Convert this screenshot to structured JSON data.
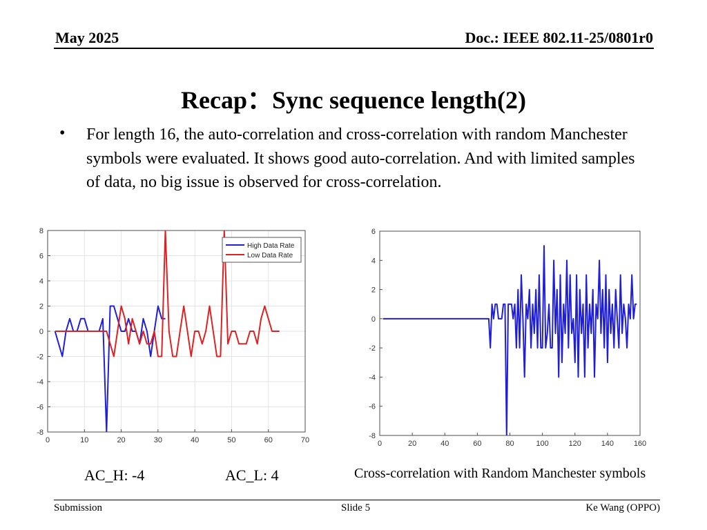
{
  "header": {
    "date": "May 2025",
    "doc": "Doc.: IEEE 802.11-25/0801r0"
  },
  "slide": {
    "title": "Recap：Sync sequence length(2)",
    "bullet": "For length 16, the auto-correlation and cross-correlation with random Manchester symbols were evaluated. It shows good auto-correlation. And with limited samples of data, no big issue is observed for cross-correlation."
  },
  "captions": {
    "ac_h": "AC_H: -4",
    "ac_l": "AC_L: 4",
    "cross": "Cross-correlation with Random Manchester symbols"
  },
  "footer": {
    "left": "Submission",
    "center": "Slide 5",
    "right": "Ke Wang (OPPO)"
  },
  "chart_data": [
    {
      "type": "line",
      "title": "",
      "xlabel": "",
      "ylabel": "",
      "xlim": [
        0,
        70
      ],
      "ylim": [
        -8,
        8
      ],
      "xticks": [
        0,
        10,
        20,
        30,
        40,
        50,
        60,
        70
      ],
      "yticks": [
        -8,
        -6,
        -4,
        -2,
        0,
        2,
        4,
        6,
        8
      ],
      "grid": true,
      "legend_position": "top-right",
      "series": [
        {
          "name": "High Data Rate",
          "color": "#1f1fd8",
          "x": [
            2,
            3,
            4,
            5,
            6,
            7,
            8,
            9,
            10,
            11,
            12,
            13,
            14,
            15,
            16,
            17,
            18,
            19,
            20,
            21,
            22,
            23,
            24,
            25,
            26,
            27,
            28,
            29,
            30,
            31,
            32
          ],
          "y": [
            0,
            -1,
            -2,
            0,
            1,
            0,
            0,
            1,
            1,
            0,
            0,
            0,
            0,
            1,
            -8,
            2,
            2,
            1,
            0,
            0,
            1,
            0,
            0,
            -1,
            1,
            0,
            -2,
            0,
            2,
            1,
            1
          ]
        },
        {
          "name": "Low Data Rate",
          "color": "#e02020",
          "x": [
            2,
            3,
            4,
            5,
            6,
            7,
            8,
            9,
            10,
            11,
            12,
            13,
            14,
            15,
            16,
            17,
            18,
            19,
            20,
            21,
            22,
            23,
            24,
            25,
            26,
            27,
            28,
            29,
            30,
            31,
            32,
            33,
            34,
            35,
            36,
            37,
            38,
            39,
            40,
            41,
            42,
            43,
            44,
            45,
            46,
            47,
            48,
            49,
            50,
            51,
            52,
            53,
            54,
            55,
            56,
            57,
            58,
            59,
            60,
            61,
            62,
            63
          ],
          "y": [
            0,
            0,
            0,
            0,
            0,
            0,
            0,
            0,
            0,
            0,
            0,
            0,
            0,
            0,
            0,
            -1,
            -2,
            0,
            2,
            1,
            -1,
            1,
            0,
            -1,
            0,
            -1,
            -1,
            0,
            -2,
            -2,
            8,
            0,
            -2,
            -2,
            0,
            2,
            0,
            -2,
            0,
            0,
            -1,
            0,
            2,
            0,
            -2,
            -2,
            8,
            -1,
            0,
            0,
            -1,
            -1,
            -1,
            0,
            0,
            -1,
            1,
            2,
            1,
            0,
            0,
            0
          ]
        }
      ]
    },
    {
      "type": "line",
      "title": "",
      "xlabel": "",
      "ylabel": "",
      "xlim": [
        0,
        160
      ],
      "ylim": [
        -8,
        6
      ],
      "xticks": [
        0,
        20,
        40,
        60,
        80,
        100,
        120,
        140,
        160
      ],
      "yticks": [
        -8,
        -6,
        -4,
        -2,
        0,
        2,
        4,
        6
      ],
      "grid": false,
      "series": [
        {
          "color": "#1f1fd8",
          "x": [
            2,
            66,
            67,
            68,
            69,
            70,
            71,
            72,
            73,
            74,
            75,
            76,
            77,
            78,
            79,
            80,
            81,
            82,
            83,
            84,
            85,
            86,
            87,
            88,
            89,
            90,
            91,
            92,
            93,
            94,
            95,
            96,
            97,
            98,
            99,
            100,
            101,
            102,
            103,
            104,
            105,
            106,
            107,
            108,
            109,
            110,
            111,
            112,
            113,
            114,
            115,
            116,
            117,
            118,
            119,
            120,
            121,
            122,
            123,
            124,
            125,
            126,
            127,
            128,
            129,
            130,
            131,
            132,
            133,
            134,
            135,
            136,
            137,
            138,
            139,
            140,
            141,
            142,
            143,
            144,
            145,
            146,
            147,
            148,
            149,
            150,
            151,
            152,
            153,
            154,
            155,
            156,
            157,
            158
          ],
          "y": [
            0,
            0,
            0,
            -2,
            1,
            0,
            1,
            1,
            0,
            0,
            0,
            1,
            1,
            -8,
            1,
            1,
            1,
            0,
            1,
            -2,
            2,
            -2,
            3,
            0,
            -4,
            1,
            0,
            2,
            -2,
            1,
            -1,
            2,
            -2,
            3,
            -2,
            -2,
            5,
            -2,
            -1,
            1,
            -2,
            -2,
            4,
            -1,
            2,
            -4,
            3,
            -3,
            1,
            -1,
            4,
            -2,
            3,
            -1,
            0,
            -3,
            3,
            -4,
            2,
            -1,
            1,
            -4,
            3,
            -2,
            1,
            -1,
            2,
            -4,
            1,
            0,
            4,
            -1,
            2,
            -2,
            3,
            -3,
            2,
            -1,
            1,
            -2,
            2,
            0,
            -2,
            3,
            -1,
            1,
            0,
            -2,
            1,
            0,
            3,
            0,
            1,
            1
          ]
        }
      ]
    }
  ]
}
